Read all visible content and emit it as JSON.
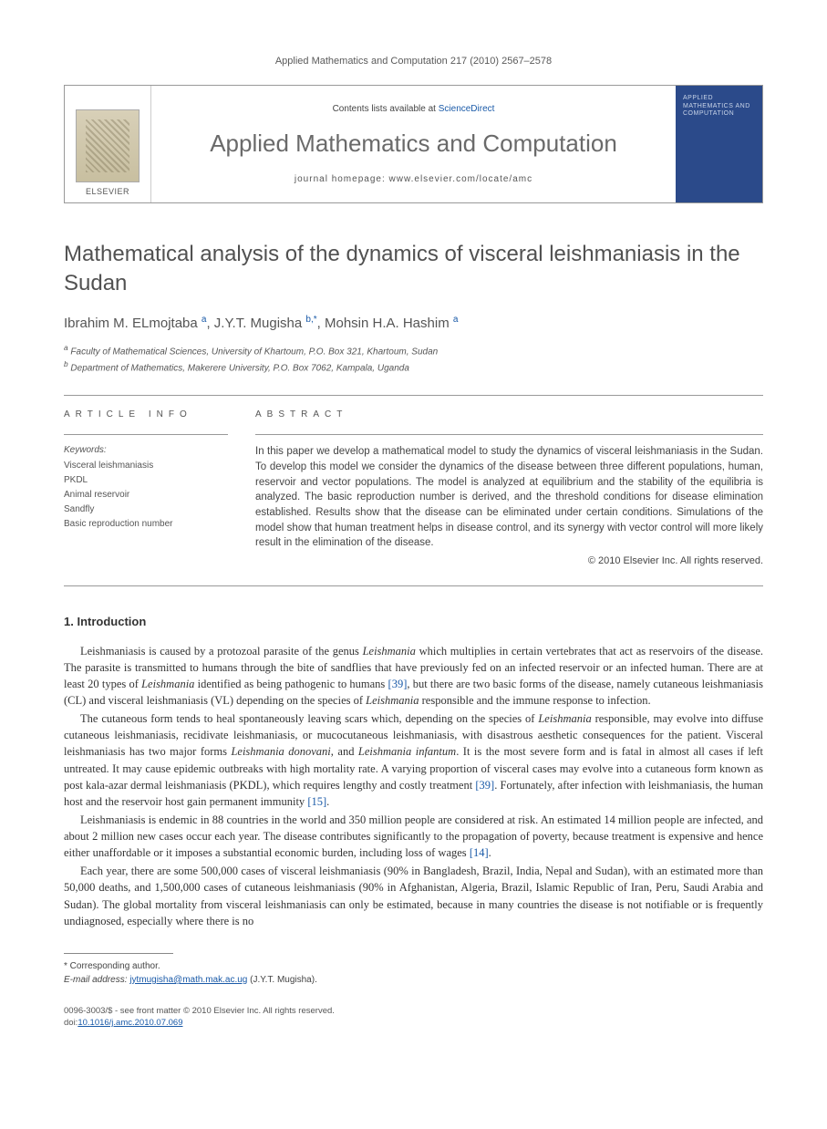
{
  "header": {
    "running_head": "Applied Mathematics and Computation 217 (2010) 2567–2578"
  },
  "masthead": {
    "publisher_label": "ELSEVIER",
    "contents_prefix": "Contents lists available at ",
    "contents_link": "ScienceDirect",
    "journal_title": "Applied Mathematics and Computation",
    "homepage": "journal homepage: www.elsevier.com/locate/amc",
    "cover_text": "APPLIED MATHEMATICS AND COMPUTATION",
    "cover_bg": "#2b4a8a",
    "cover_fg": "#c8d4e8"
  },
  "paper": {
    "title": "Mathematical analysis of the dynamics of visceral leishmaniasis in the Sudan",
    "authors_html": "Ibrahim M. ELmojtaba <sup>a</sup>, J.Y.T. Mugisha <sup>b,*</sup>, Mohsin H.A. Hashim <sup>a</sup>",
    "affiliations": [
      "a Faculty of Mathematical Sciences, University of Khartoum, P.O. Box 321, Khartoum, Sudan",
      "b Department of Mathematics, Makerere University, P.O. Box 7062, Kampala, Uganda"
    ]
  },
  "article_info": {
    "label": "ARTICLE INFO",
    "keywords_label": "Keywords:",
    "keywords": [
      "Visceral leishmaniasis",
      "PKDL",
      "Animal reservoir",
      "Sandfly",
      "Basic reproduction number"
    ]
  },
  "abstract": {
    "label": "ABSTRACT",
    "text": "In this paper we develop a mathematical model to study the dynamics of visceral leishmaniasis in the Sudan. To develop this model we consider the dynamics of the disease between three different populations, human, reservoir and vector populations. The model is analyzed at equilibrium and the stability of the equilibria is analyzed. The basic reproduction number is derived, and the threshold conditions for disease elimination established. Results show that the disease can be eliminated under certain conditions. Simulations of the model show that human treatment helps in disease control, and its synergy with vector control will more likely result in the elimination of the disease.",
    "copyright": "© 2010 Elsevier Inc. All rights reserved."
  },
  "sections": {
    "intro_heading": "1. Introduction",
    "paragraphs": [
      "Leishmaniasis is caused by a protozoal parasite of the genus <em>Leishmania</em> which multiplies in certain vertebrates that act as reservoirs of the disease. The parasite is transmitted to humans through the bite of sandflies that have previously fed on an infected reservoir or an infected human. There are at least 20 types of <em>Leishmania</em> identified as being pathogenic to humans <span class=\"ref\">[39]</span>, but there are two basic forms of the disease, namely cutaneous leishmaniasis (CL) and visceral leishmaniasis (VL) depending on the species of <em>Leishmania</em> responsible and the immune response to infection.",
      "The cutaneous form tends to heal spontaneously leaving scars which, depending on the species of <em>Leishmania</em> responsible, may evolve into diffuse cutaneous leishmaniasis, recidivate leishmaniasis, or mucocutaneous leishmaniasis, with disastrous aesthetic consequences for the patient. Visceral leishmaniasis has two major forms <em>Leishmania donovani</em>, and <em>Leishmania infantum</em>. It is the most severe form and is fatal in almost all cases if left untreated. It may cause epidemic outbreaks with high mortality rate. A varying proportion of visceral cases may evolve into a cutaneous form known as post kala-azar dermal leishmaniasis (PKDL), which requires lengthy and costly treatment <span class=\"ref\">[39]</span>. Fortunately, after infection with leishmaniasis, the human host and the reservoir host gain permanent immunity <span class=\"ref\">[15]</span>.",
      "Leishmaniasis is endemic in 88 countries in the world and 350 million people are considered at risk. An estimated 14 million people are infected, and about 2 million new cases occur each year. The disease contributes significantly to the propagation of poverty, because treatment is expensive and hence either unaffordable or it imposes a substantial economic burden, including loss of wages <span class=\"ref\">[14]</span>.",
      "Each year, there are some 500,000 cases of visceral leishmaniasis (90% in Bangladesh, Brazil, India, Nepal and Sudan), with an estimated more than 50,000 deaths, and 1,500,000 cases of cutaneous leishmaniasis (90% in Afghanistan, Algeria, Brazil, Islamic Republic of Iran, Peru, Saudi Arabia and Sudan). The global mortality from visceral leishmaniasis can only be estimated, because in many countries the disease is not notifiable or is frequently undiagnosed, especially where there is no"
    ]
  },
  "footnote": {
    "corresponding": "* Corresponding author.",
    "email_label": "E-mail address:",
    "email": "jytmugisha@math.mak.ac.ug",
    "email_suffix": "(J.Y.T. Mugisha)."
  },
  "footer": {
    "issn_line": "0096-3003/$ - see front matter © 2010 Elsevier Inc. All rights reserved.",
    "doi_prefix": "doi:",
    "doi": "10.1016/j.amc.2010.07.069"
  },
  "colors": {
    "link": "#1a5aa8",
    "heading_gray": "#515151",
    "rule": "#999999"
  }
}
